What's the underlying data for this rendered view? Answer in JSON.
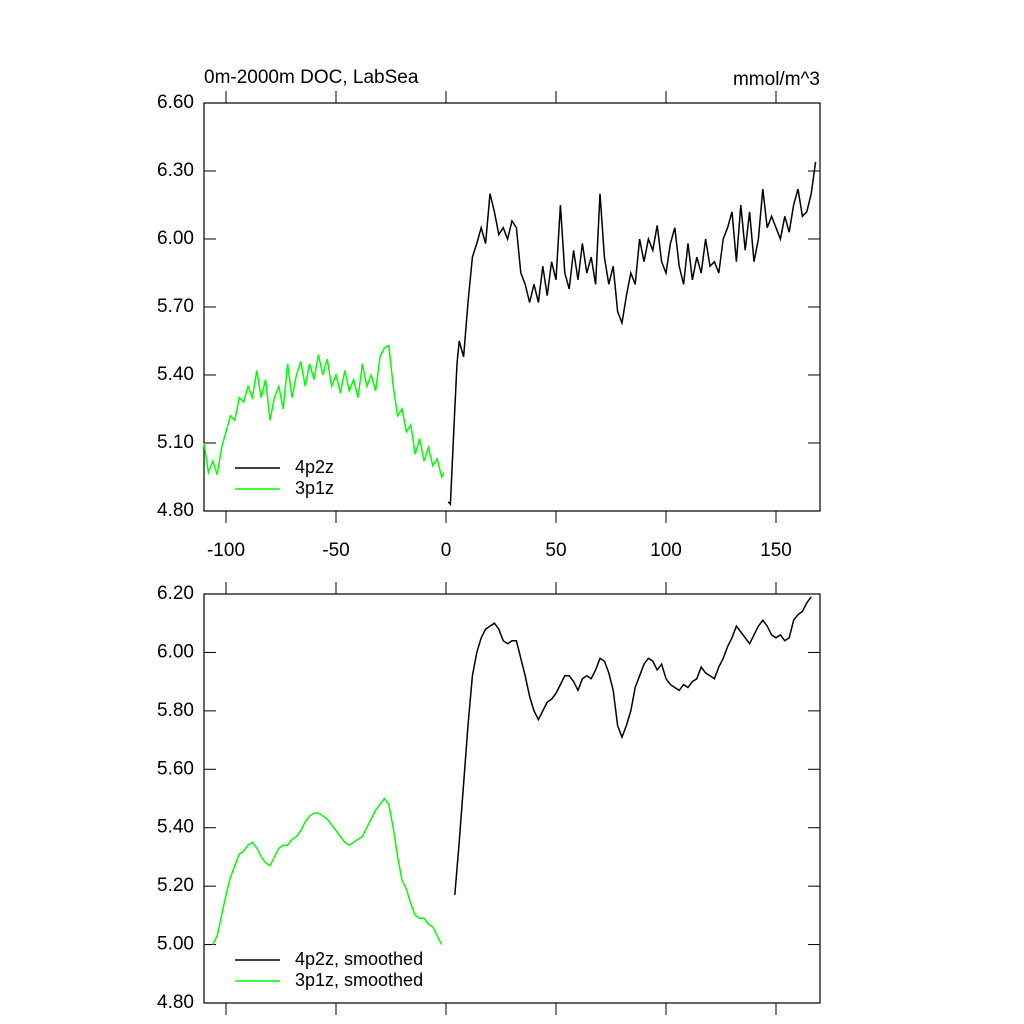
{
  "chart_data": [
    {
      "type": "line",
      "title": "0m-2000m DOC, LabSea",
      "units": "mmol/m^3",
      "xlim": [
        -110,
        170
      ],
      "xticks": [
        -100,
        -50,
        0,
        50,
        100,
        150
      ],
      "ylim": [
        4.8,
        6.6
      ],
      "yticks": [
        {
          "value": 4.8,
          "label": "4.80"
        },
        {
          "value": 5.1,
          "label": "5.10"
        },
        {
          "value": 5.4,
          "label": "5.40"
        },
        {
          "value": 5.7,
          "label": "5.70"
        },
        {
          "value": 6.0,
          "label": "6.00"
        },
        {
          "value": 6.3,
          "label": "6.30"
        },
        {
          "value": 6.6,
          "label": "6.60"
        }
      ],
      "legend": "lower left",
      "series": [
        {
          "name": "4p2z",
          "color": "#000000",
          "x": [
            1,
            2,
            4,
            5,
            6,
            8,
            10,
            12,
            14,
            16,
            18,
            20,
            22,
            24,
            26,
            28,
            30,
            32,
            34,
            36,
            38,
            40,
            42,
            44,
            46,
            48,
            50,
            52,
            54,
            56,
            58,
            60,
            62,
            64,
            66,
            68,
            70,
            72,
            74,
            76,
            78,
            80,
            82,
            84,
            86,
            88,
            90,
            92,
            94,
            96,
            98,
            100,
            102,
            104,
            106,
            108,
            110,
            112,
            114,
            116,
            118,
            120,
            122,
            124,
            126,
            128,
            130,
            132,
            134,
            136,
            138,
            140,
            142,
            144,
            146,
            148,
            150,
            152,
            154,
            156,
            158,
            160,
            162,
            164,
            166,
            168
          ],
          "values": [
            4.84,
            4.83,
            5.25,
            5.45,
            5.55,
            5.48,
            5.72,
            5.92,
            5.98,
            6.05,
            5.98,
            6.2,
            6.12,
            6.02,
            6.05,
            6.0,
            6.08,
            6.05,
            5.85,
            5.8,
            5.72,
            5.8,
            5.72,
            5.88,
            5.75,
            5.9,
            5.82,
            6.15,
            5.85,
            5.78,
            5.95,
            5.82,
            5.98,
            5.85,
            5.92,
            5.8,
            6.2,
            5.92,
            5.8,
            5.88,
            5.68,
            5.63,
            5.75,
            5.85,
            5.8,
            6.0,
            5.9,
            6.0,
            5.95,
            6.06,
            5.9,
            5.85,
            5.98,
            6.05,
            5.88,
            5.8,
            5.98,
            5.82,
            5.92,
            5.85,
            6.0,
            5.88,
            5.9,
            5.85,
            6.0,
            6.05,
            6.12,
            5.9,
            6.15,
            5.95,
            6.12,
            5.9,
            6.0,
            6.22,
            6.05,
            6.1,
            6.05,
            6.0,
            6.1,
            6.03,
            6.15,
            6.22,
            6.1,
            6.12,
            6.2,
            6.34
          ]
        },
        {
          "name": "3p1z",
          "color": "#00ff00",
          "x": [
            -110,
            -108,
            -106,
            -104,
            -102,
            -100,
            -98,
            -96,
            -94,
            -92,
            -90,
            -88,
            -86,
            -84,
            -82,
            -80,
            -78,
            -76,
            -74,
            -72,
            -70,
            -68,
            -66,
            -64,
            -62,
            -60,
            -58,
            -56,
            -54,
            -52,
            -50,
            -48,
            -46,
            -44,
            -42,
            -40,
            -38,
            -36,
            -34,
            -32,
            -30,
            -28,
            -26,
            -24,
            -22,
            -20,
            -18,
            -16,
            -14,
            -12,
            -10,
            -8,
            -6,
            -4,
            -2,
            -1
          ],
          "values": [
            5.1,
            4.97,
            5.02,
            4.96,
            5.08,
            5.15,
            5.22,
            5.2,
            5.3,
            5.28,
            5.35,
            5.3,
            5.42,
            5.3,
            5.38,
            5.2,
            5.3,
            5.35,
            5.25,
            5.45,
            5.3,
            5.4,
            5.46,
            5.35,
            5.45,
            5.38,
            5.49,
            5.4,
            5.47,
            5.35,
            5.4,
            5.32,
            5.42,
            5.33,
            5.38,
            5.3,
            5.45,
            5.35,
            5.4,
            5.33,
            5.48,
            5.52,
            5.53,
            5.35,
            5.22,
            5.25,
            5.15,
            5.18,
            5.05,
            5.12,
            5.02,
            5.08,
            5.0,
            5.03,
            4.95,
            4.97
          ]
        }
      ]
    },
    {
      "type": "line",
      "xlim": [
        -110,
        170
      ],
      "xticks": [
        -100,
        -50,
        0,
        50,
        100,
        150
      ],
      "ylim": [
        4.8,
        6.2
      ],
      "yticks": [
        {
          "value": 4.8,
          "label": "4.80"
        },
        {
          "value": 5.0,
          "label": "5.00"
        },
        {
          "value": 5.2,
          "label": "5.20"
        },
        {
          "value": 5.4,
          "label": "5.40"
        },
        {
          "value": 5.6,
          "label": "5.60"
        },
        {
          "value": 5.8,
          "label": "5.80"
        },
        {
          "value": 6.0,
          "label": "6.00"
        },
        {
          "value": 6.2,
          "label": "6.20"
        }
      ],
      "legend": "lower left",
      "series": [
        {
          "name": "4p2z, smoothed",
          "color": "#000000",
          "x": [
            4,
            6,
            8,
            10,
            12,
            14,
            16,
            18,
            20,
            22,
            24,
            26,
            28,
            30,
            32,
            34,
            36,
            38,
            40,
            42,
            44,
            46,
            48,
            50,
            52,
            54,
            56,
            58,
            60,
            62,
            64,
            66,
            68,
            70,
            72,
            74,
            76,
            78,
            80,
            82,
            84,
            86,
            88,
            90,
            92,
            94,
            96,
            98,
            100,
            102,
            104,
            106,
            108,
            110,
            112,
            114,
            116,
            118,
            120,
            122,
            124,
            126,
            128,
            130,
            132,
            134,
            136,
            138,
            140,
            142,
            144,
            146,
            148,
            150,
            152,
            154,
            156,
            158,
            160,
            162,
            164,
            166
          ],
          "values": [
            5.17,
            5.35,
            5.55,
            5.75,
            5.92,
            6.0,
            6.05,
            6.08,
            6.09,
            6.1,
            6.08,
            6.04,
            6.03,
            6.04,
            6.04,
            5.98,
            5.92,
            5.85,
            5.8,
            5.77,
            5.8,
            5.83,
            5.84,
            5.86,
            5.89,
            5.92,
            5.92,
            5.9,
            5.87,
            5.91,
            5.92,
            5.91,
            5.94,
            5.98,
            5.97,
            5.93,
            5.87,
            5.75,
            5.71,
            5.75,
            5.8,
            5.88,
            5.92,
            5.96,
            5.98,
            5.97,
            5.94,
            5.96,
            5.91,
            5.89,
            5.88,
            5.87,
            5.89,
            5.88,
            5.9,
            5.91,
            5.95,
            5.93,
            5.92,
            5.91,
            5.95,
            5.98,
            6.02,
            6.05,
            6.09,
            6.07,
            6.05,
            6.03,
            6.06,
            6.09,
            6.11,
            6.09,
            6.06,
            6.05,
            6.06,
            6.04,
            6.05,
            6.11,
            6.13,
            6.14,
            6.17,
            6.19
          ]
        },
        {
          "name": "3p1z, smoothed",
          "color": "#00ff00",
          "x": [
            -106,
            -104,
            -102,
            -100,
            -98,
            -96,
            -94,
            -92,
            -90,
            -88,
            -86,
            -84,
            -82,
            -80,
            -78,
            -76,
            -74,
            -72,
            -70,
            -68,
            -66,
            -64,
            -62,
            -60,
            -58,
            -56,
            -54,
            -52,
            -50,
            -48,
            -46,
            -44,
            -42,
            -40,
            -38,
            -36,
            -34,
            -32,
            -30,
            -28,
            -26,
            -24,
            -22,
            -20,
            -18,
            -16,
            -14,
            -12,
            -10,
            -8,
            -6,
            -4,
            -2
          ],
          "values": [
            5.0,
            5.03,
            5.1,
            5.17,
            5.23,
            5.27,
            5.31,
            5.32,
            5.34,
            5.35,
            5.33,
            5.3,
            5.28,
            5.27,
            5.3,
            5.33,
            5.34,
            5.34,
            5.36,
            5.37,
            5.39,
            5.42,
            5.44,
            5.45,
            5.45,
            5.44,
            5.43,
            5.41,
            5.39,
            5.37,
            5.35,
            5.34,
            5.35,
            5.36,
            5.37,
            5.4,
            5.43,
            5.46,
            5.48,
            5.5,
            5.48,
            5.4,
            5.3,
            5.22,
            5.19,
            5.14,
            5.1,
            5.09,
            5.09,
            5.07,
            5.06,
            5.03,
            5.0
          ]
        }
      ]
    }
  ]
}
